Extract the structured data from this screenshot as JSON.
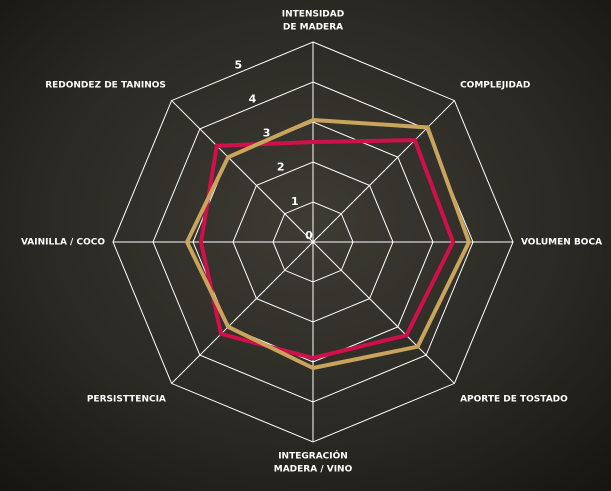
{
  "chart_data": {
    "type": "radar",
    "categories": [
      [
        "INTENSIDAD",
        "DE MADERA"
      ],
      [
        "COMPLEJIDAD"
      ],
      [
        "VOLUMEN BOCA"
      ],
      [
        "APORTE DE TOSTADO"
      ],
      [
        "INTEGRACIÓN",
        "MADERA / VINO"
      ],
      [
        "PERSISTTENCIA"
      ],
      [
        "VAINILLA / COCO"
      ],
      [
        "REDONDEZ DE TANINOS"
      ]
    ],
    "series": [
      {
        "color": "#d0104a",
        "values": [
          2.5,
          3.6,
          3.5,
          3.3,
          2.9,
          3.25,
          2.8,
          3.4
        ]
      },
      {
        "color": "#c9a45c",
        "values": [
          3.05,
          4.05,
          3.9,
          3.7,
          3.15,
          3.0,
          3.15,
          3.0
        ]
      }
    ],
    "ylim": [
      0,
      5
    ],
    "yticks": [
      0,
      1,
      2,
      3,
      4,
      5
    ],
    "grid": true
  }
}
